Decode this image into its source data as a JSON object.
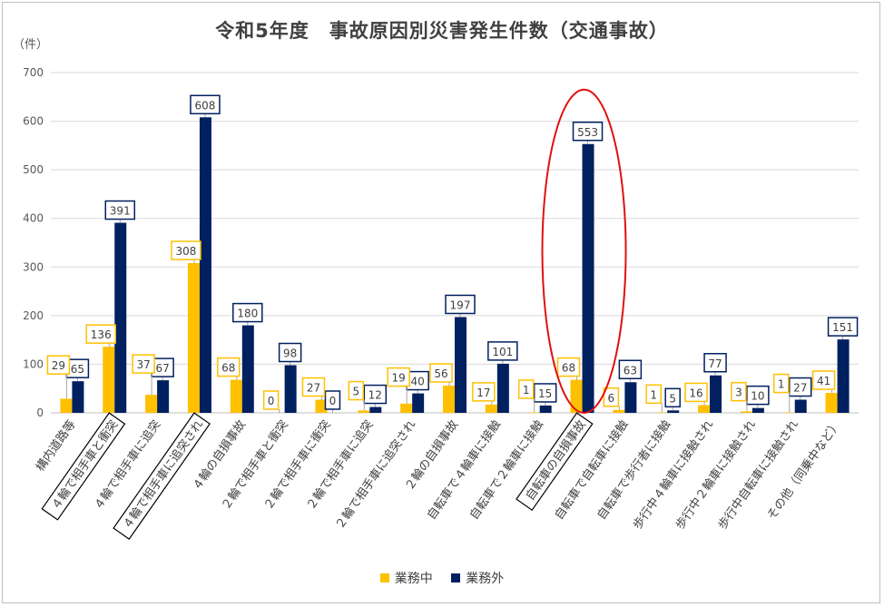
{
  "chart_data": {
    "type": "bar",
    "title": "令和5年度　事故原因別災害発生件数（交通事故）",
    "unit_label": "（件）",
    "ylim": [
      0,
      700
    ],
    "yticks": [
      0,
      100,
      200,
      300,
      400,
      500,
      600,
      700
    ],
    "grid": true,
    "legend_position": "bottom",
    "categories": [
      "構内道路等",
      "４輪で相手車と衝突",
      "４輪で相手車に追突",
      "４輪で相手車に追突され",
      "４輪の自損事故",
      "２輪で相手車と衝突",
      "２輪で相手車に衝突",
      "２輪で相手車に追突",
      "２輪で相手車に追突され",
      "２輪の自損事故",
      "自転車で４輪車に接触",
      "自転車で２輪車に接触",
      "自転車の自損事故",
      "自転車で自転車に接触",
      "自転車で歩行者に接触",
      "歩行中４輪車に接触され",
      "歩行中２輪車に接触され",
      "歩行中自転車に接触され",
      "その他（同乗中など）"
    ],
    "boxed_categories": [
      1,
      3,
      12
    ],
    "highlighted_category": 12,
    "series": [
      {
        "name": "業務中",
        "color": "#FFC000",
        "values": [
          29,
          136,
          37,
          308,
          68,
          0,
          27,
          5,
          19,
          56,
          17,
          1,
          68,
          6,
          1,
          16,
          3,
          1,
          41
        ]
      },
      {
        "name": "業務外",
        "color": "#002060",
        "values": [
          65,
          391,
          67,
          608,
          180,
          98,
          0,
          12,
          40,
          197,
          101,
          15,
          553,
          63,
          5,
          77,
          10,
          27,
          151
        ]
      }
    ],
    "highlight_color": "#e01010"
  }
}
